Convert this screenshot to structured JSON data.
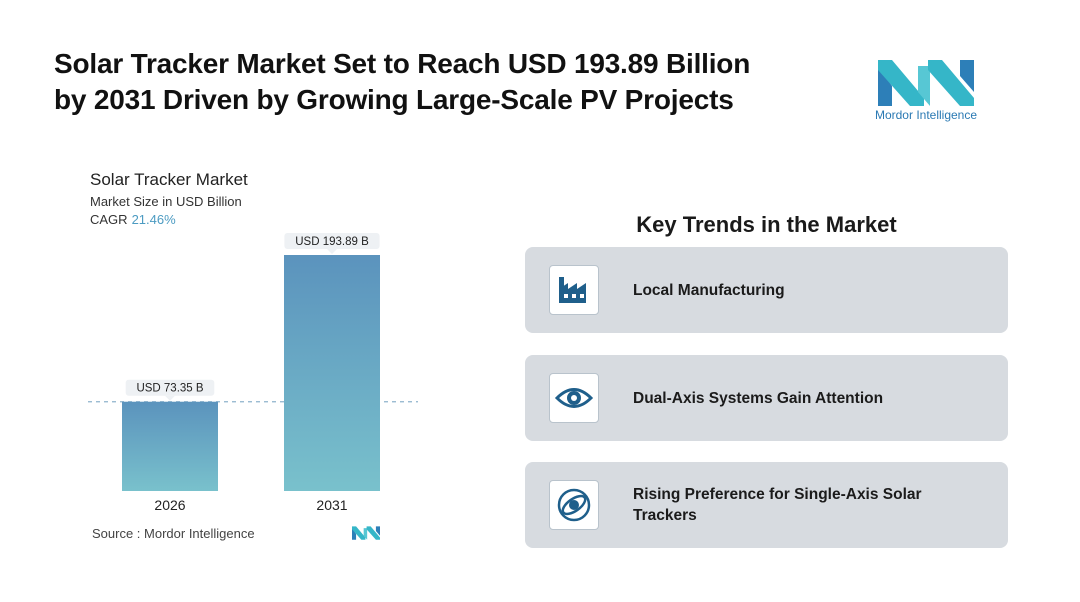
{
  "headline": {
    "line1": "Solar Tracker Market Set to Reach USD 193.89 Billion",
    "line2": "by 2031 Driven by Growing Large-Scale PV Projects"
  },
  "brand": {
    "name": "Mordor Intelligence",
    "icon": "mordor-logo-icon",
    "color": "#2a79b3"
  },
  "chart_info": {
    "title": "Solar Tracker Market",
    "subtitle": "Market Size in USD Billion",
    "cagr_label": "CAGR",
    "cagr_value": "21.46%"
  },
  "chart_data": {
    "type": "bar",
    "categories": [
      "2026",
      "2031"
    ],
    "values": [
      73.35,
      193.89
    ],
    "value_labels": [
      "USD 73.35 B",
      "USD 193.89 B"
    ],
    "unit": "USD Billion",
    "ylim": [
      0,
      193.89
    ],
    "grid": false,
    "reference_line": "dashed line at the 2026 value",
    "colors": {
      "bar_top": "#5b93bd",
      "bar_bottom": "#79c1cc"
    }
  },
  "source": {
    "text": "Source :  Mordor Intelligence"
  },
  "trends": {
    "title": "Key Trends in the Market",
    "items": [
      {
        "label": "Local Manufacturing",
        "icon": "factory-icon"
      },
      {
        "label": "Dual-Axis Systems Gain Attention",
        "icon": "eye-icon"
      },
      {
        "label": "Rising Preference for Single-Axis Solar Trackers",
        "icon": "orbit-icon"
      }
    ]
  }
}
